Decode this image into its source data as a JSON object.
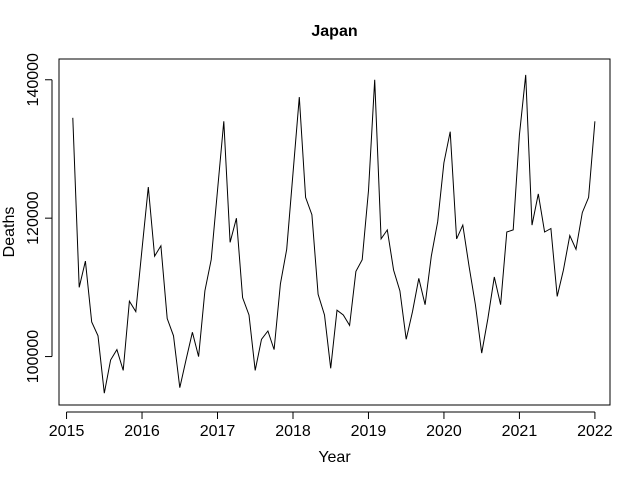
{
  "chart_data": {
    "type": "line",
    "title": "Japan",
    "xlabel": "Year",
    "ylabel": "Deaths",
    "xlim": [
      2014.9,
      2022.2
    ],
    "ylim": [
      93000,
      143000
    ],
    "x_ticks": [
      2015,
      2016,
      2017,
      2018,
      2019,
      2020,
      2021,
      2022
    ],
    "x_tick_labels": [
      "2015",
      "2016",
      "2017",
      "2018",
      "2019",
      "2020",
      "2021",
      "2022"
    ],
    "y_ticks": [
      100000,
      120000,
      140000
    ],
    "y_tick_labels": [
      "100000",
      "120000",
      "140000"
    ],
    "grid": false,
    "legend": "none",
    "line_color": "#000000",
    "series": [
      {
        "x": [
          2015.083,
          2015.167,
          2015.25,
          2015.333,
          2015.417,
          2015.5,
          2015.583,
          2015.667,
          2015.75,
          2015.833,
          2015.917,
          2016.0,
          2016.083,
          2016.167,
          2016.25,
          2016.333,
          2016.417,
          2016.5,
          2016.583,
          2016.667,
          2016.75,
          2016.833,
          2016.917,
          2017.0,
          2017.083,
          2017.167,
          2017.25,
          2017.333,
          2017.417,
          2017.5,
          2017.583,
          2017.667,
          2017.75,
          2017.833,
          2017.917,
          2018.0,
          2018.083,
          2018.167,
          2018.25,
          2018.333,
          2018.417,
          2018.5,
          2018.583,
          2018.667,
          2018.75,
          2018.833,
          2018.917,
          2019.0,
          2019.083,
          2019.167,
          2019.25,
          2019.333,
          2019.417,
          2019.5,
          2019.583,
          2019.667,
          2019.75,
          2019.833,
          2019.917,
          2020.0,
          2020.083,
          2020.167,
          2020.25,
          2020.333,
          2020.417,
          2020.5,
          2020.583,
          2020.667,
          2020.75,
          2020.833,
          2020.917,
          2021.0,
          2021.083,
          2021.167,
          2021.25,
          2021.333,
          2021.417,
          2021.5,
          2021.583,
          2021.667,
          2021.75,
          2021.833,
          2021.917,
          2022.0
        ],
        "values": [
          134500,
          110000,
          113800,
          105000,
          103000,
          94700,
          99500,
          101000,
          98000,
          108000,
          106500,
          115500,
          124500,
          114500,
          116000,
          105500,
          103000,
          95500,
          99500,
          103500,
          100000,
          109500,
          114000,
          124000,
          134000,
          116500,
          120000,
          108500,
          106000,
          98000,
          102500,
          103700,
          101000,
          110500,
          115500,
          126500,
          137500,
          123000,
          120500,
          109000,
          106000,
          98300,
          106700,
          106000,
          104500,
          112300,
          114000,
          124000,
          140000,
          117000,
          118300,
          112500,
          109500,
          102500,
          106500,
          111300,
          107500,
          114500,
          119500,
          128000,
          132500,
          117000,
          119000,
          113000,
          107500,
          100500,
          105500,
          111500,
          107500,
          118000,
          118300,
          132000,
          140700,
          119000,
          123500,
          118000,
          118500,
          108700,
          112500,
          117500,
          115500,
          120800,
          123000,
          134000
        ]
      }
    ]
  }
}
